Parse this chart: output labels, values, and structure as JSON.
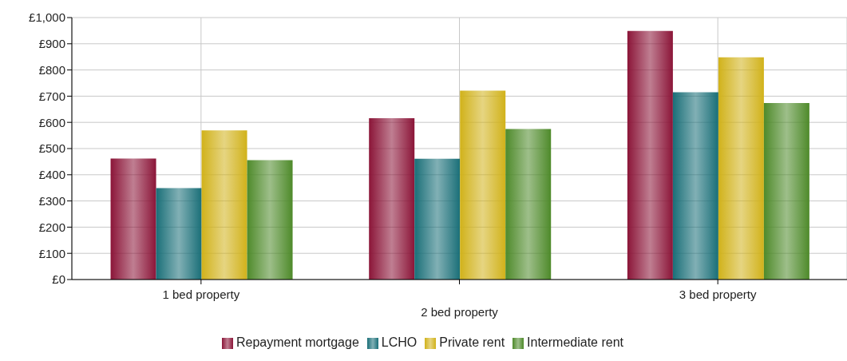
{
  "chart_data": {
    "type": "bar",
    "categories": [
      "1 bed property",
      "2 bed property",
      "3 bed property"
    ],
    "series": [
      {
        "name": "Repayment mortgage",
        "color": "#8b1538",
        "values": [
          462,
          616,
          949
        ]
      },
      {
        "name": "LCHO",
        "color": "#1a6f78",
        "values": [
          349,
          461,
          715
        ]
      },
      {
        "name": "Private rent",
        "color": "#d1b21a",
        "values": [
          569,
          721,
          848
        ]
      },
      {
        "name": "Intermediate rent",
        "color": "#4e8a2a",
        "values": [
          456,
          575,
          674
        ]
      }
    ],
    "ylim": [
      0,
      1000
    ],
    "yticks": [
      {
        "value": 0,
        "label": "£0"
      },
      {
        "value": 100,
        "label": "£100"
      },
      {
        "value": 200,
        "label": "£200"
      },
      {
        "value": 300,
        "label": "£300"
      },
      {
        "value": 400,
        "label": "£400"
      },
      {
        "value": 500,
        "label": "£500"
      },
      {
        "value": 600,
        "label": "£600"
      },
      {
        "value": 700,
        "label": "£700"
      },
      {
        "value": 800,
        "label": "£800"
      },
      {
        "value": 900,
        "label": "£900"
      },
      {
        "value": 1000,
        "label": "£1,000"
      }
    ],
    "grid": true,
    "legend": "bottom"
  }
}
